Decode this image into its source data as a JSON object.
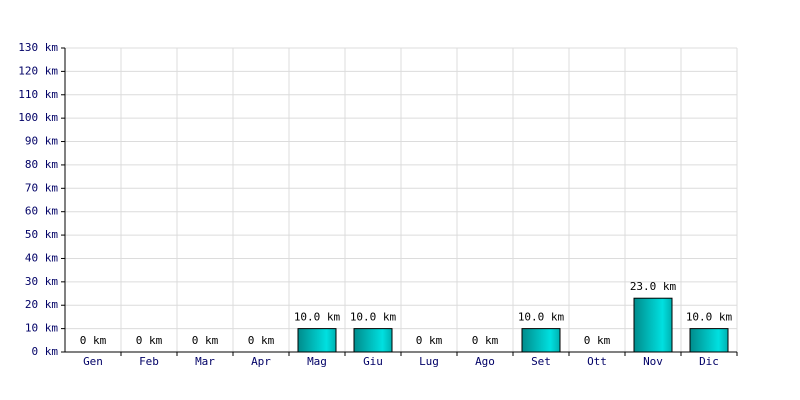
{
  "chart_data": {
    "type": "bar",
    "categories": [
      "Gen",
      "Feb",
      "Mar",
      "Apr",
      "Mag",
      "Giu",
      "Lug",
      "Ago",
      "Set",
      "Ott",
      "Nov",
      "Dic"
    ],
    "values": [
      0,
      0,
      0,
      0,
      10,
      10,
      0,
      0,
      10,
      0,
      23,
      10
    ],
    "value_labels": [
      "0 km",
      "0 km",
      "0 km",
      "0 km",
      "10.0 km",
      "10.0 km",
      "0 km",
      "0 km",
      "10.0 km",
      "0 km",
      "23.0 km",
      "10.0 km"
    ],
    "color": "#00e0e0",
    "ylim": [
      0,
      130
    ],
    "yticks": [
      {
        "value": 0,
        "label": "0 km"
      },
      {
        "value": 10,
        "label": "10 km"
      },
      {
        "value": 20,
        "label": "20 km"
      },
      {
        "value": 30,
        "label": "30 km"
      },
      {
        "value": 40,
        "label": "40 km"
      },
      {
        "value": 50,
        "label": "50 km"
      },
      {
        "value": 60,
        "label": "60 km"
      },
      {
        "value": 70,
        "label": "70 km"
      },
      {
        "value": 80,
        "label": "80 km"
      },
      {
        "value": 90,
        "label": "90 km"
      },
      {
        "value": 100,
        "label": "100 km"
      },
      {
        "value": 110,
        "label": "110 km"
      },
      {
        "value": 120,
        "label": "120 km"
      },
      {
        "value": 130,
        "label": "130 km"
      }
    ],
    "grid": true
  }
}
